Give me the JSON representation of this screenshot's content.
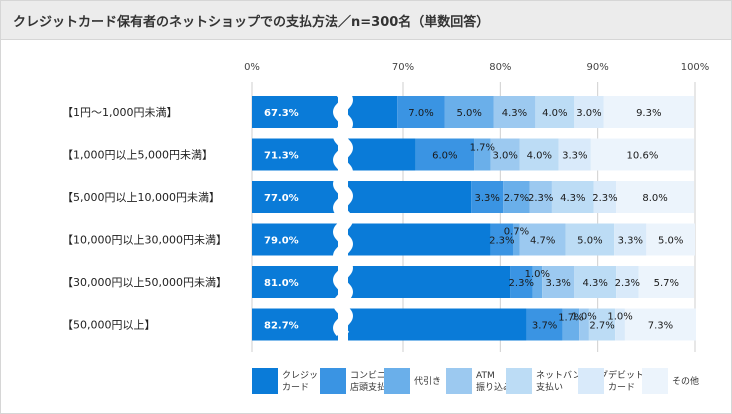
{
  "title": "クレジットカード保有者のネットショップでの支払方法／n=300名（単数回答）",
  "chart_data": {
    "type": "bar",
    "orientation": "horizontal",
    "stacked": true,
    "axis_break": true,
    "title": "クレジットカード保有者のネットショップでの支払方法／n=300名（単数回答）",
    "x_ticks": [
      "0%",
      "70%",
      "80%",
      "90%",
      "100%"
    ],
    "xlim": [
      0,
      100
    ],
    "grid": true,
    "legend_position": "bottom",
    "categories": [
      "【1円〜1,000円未満】",
      "【1,000円以上5,000円未満】",
      "【5,000円以上10,000円未満】",
      "【10,000円以上30,000円未満】",
      "【30,000円以上50,000円未満】",
      "【50,000円以上】"
    ],
    "series": [
      {
        "name": "クレジット\nカード",
        "color": "#0a7bd8",
        "values": [
          67.3,
          71.3,
          77.0,
          79.0,
          81.0,
          82.7
        ]
      },
      {
        "name": "コンビニ\n店頭支払い",
        "color": "#3a94e3",
        "values": [
          7.0,
          6.0,
          3.3,
          2.3,
          2.3,
          3.7
        ]
      },
      {
        "name": "代引き",
        "color": "#6aafea",
        "values": [
          5.0,
          1.7,
          2.7,
          0.7,
          1.0,
          1.7
        ]
      },
      {
        "name": "ATM\n振り込み",
        "color": "#9cc9f0",
        "values": [
          4.3,
          3.0,
          2.3,
          4.7,
          3.3,
          1.0
        ]
      },
      {
        "name": "ネットバンキング\n支払い",
        "color": "#bcdcf5",
        "values": [
          4.0,
          4.0,
          4.3,
          5.0,
          4.3,
          2.7
        ]
      },
      {
        "name": "デビット\nカード",
        "color": "#d9eafa",
        "values": [
          3.0,
          3.3,
          2.3,
          3.3,
          2.3,
          1.0
        ]
      },
      {
        "name": "その他",
        "color": "#ecf4fc",
        "values": [
          9.3,
          10.6,
          8.0,
          5.0,
          5.7,
          7.3
        ]
      }
    ]
  }
}
